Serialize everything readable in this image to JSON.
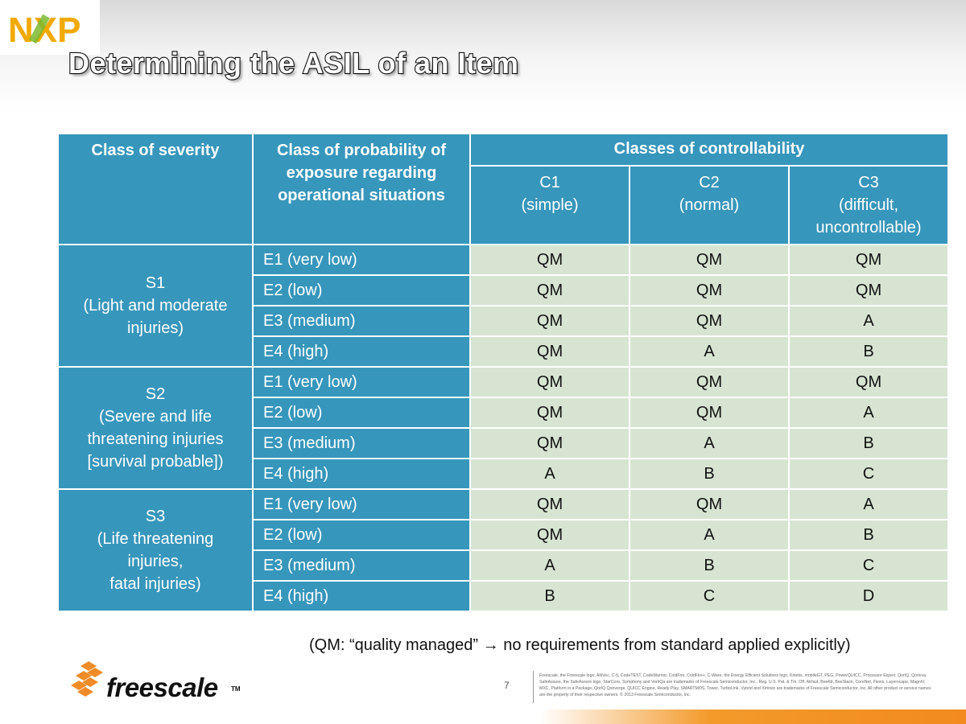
{
  "slide": {
    "title": "Determining the ASIL of an Item",
    "page_number": "7",
    "note": "(QM: “quality managed” → no requirements from standard applied explicitly)",
    "legal_text": "Freescale, the Freescale logo, AltiVec, C-5, CodeTEST, CodeWarrior, ColdFire, ColdFire+, C-Ware, the Energy Efficient Solutions logo, Kinetis, mobileGT, PEG, PowerQUICC, Processor Expert, QorIQ, Qorivva, SafeAssure, the SafeAssure logo, StarCore, Symphony and VortiQa are trademarks of Freescale Semiconductor, Inc., Reg. U.S. Pat. & Tm. Off. Airfast, BeeKit, BeeStack, CoreNet, Flexis, Layerscape, MagniV, MXC, Platform in a Package, QorIQ Qonverge, QUICC Engine, Ready Play, SMARTMOS, Tower, TurboLink, Vybrid and Xtrinsic are trademarks of Freescale Semiconductor, Inc. All other product or service names are the property of their respective owners. © 2013 Freescale Semiconductor, Inc."
  },
  "logos": {
    "top_brand": "NXP",
    "bottom_brand": "freescale",
    "bottom_tm": "TM"
  },
  "table": {
    "headers": {
      "severity": "Class of severity",
      "exposure": "Class of probability of exposure regarding operational situations",
      "controllability": "Classes of controllability"
    },
    "controllability_classes": [
      {
        "code": "C1",
        "desc": "(simple)"
      },
      {
        "code": "C2",
        "desc": "(normal)"
      },
      {
        "code": "C3",
        "desc": "(difficult, uncontrollable)"
      }
    ],
    "severity_groups": [
      {
        "code": "S1",
        "desc_lines": [
          "(Light and moderate",
          "injuries)"
        ],
        "rows": [
          {
            "exposure": "E1 (very low)",
            "values": [
              "QM",
              "QM",
              "QM"
            ]
          },
          {
            "exposure": "E2 (low)",
            "values": [
              "QM",
              "QM",
              "QM"
            ]
          },
          {
            "exposure": "E3 (medium)",
            "values": [
              "QM",
              "QM",
              "A"
            ]
          },
          {
            "exposure": "E4 (high)",
            "values": [
              "QM",
              "A",
              "B"
            ]
          }
        ]
      },
      {
        "code": "S2",
        "desc_lines": [
          "(Severe and life",
          "threatening injuries",
          "[survival probable])"
        ],
        "rows": [
          {
            "exposure": "E1 (very low)",
            "values": [
              "QM",
              "QM",
              "QM"
            ]
          },
          {
            "exposure": "E2 (low)",
            "values": [
              "QM",
              "QM",
              "A"
            ]
          },
          {
            "exposure": "E3 (medium)",
            "values": [
              "QM",
              "A",
              "B"
            ]
          },
          {
            "exposure": "E4 (high)",
            "values": [
              "A",
              "B",
              "C"
            ]
          }
        ]
      },
      {
        "code": "S3",
        "desc_lines": [
          "(Life threatening",
          "injuries,",
          "fatal injuries)"
        ],
        "rows": [
          {
            "exposure": "E1 (very low)",
            "values": [
              "QM",
              "QM",
              "A"
            ]
          },
          {
            "exposure": "E2 (low)",
            "values": [
              "QM",
              "A",
              "B"
            ]
          },
          {
            "exposure": "E3 (medium)",
            "values": [
              "A",
              "B",
              "C"
            ]
          },
          {
            "exposure": "E4 (high)",
            "values": [
              "B",
              "C",
              "D"
            ]
          }
        ]
      }
    ]
  }
}
